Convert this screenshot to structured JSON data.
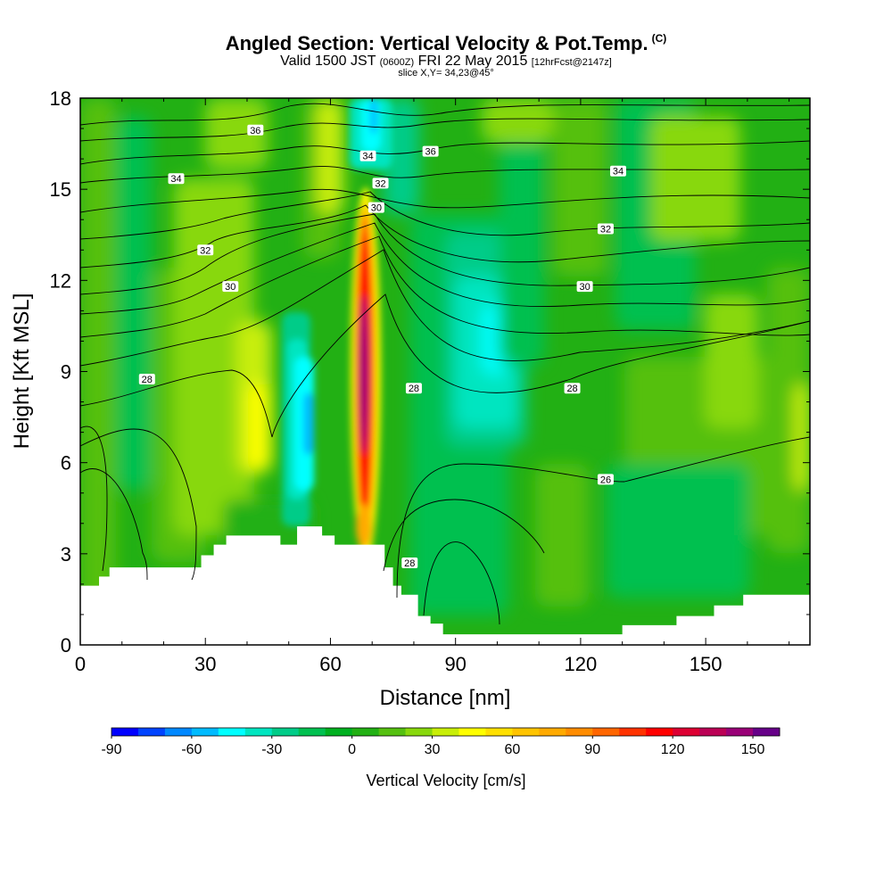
{
  "header": {
    "title": "Angled Section: Vertical Velocity & Pot.Temp.",
    "title_mark": "(C)",
    "valid_prefix": "Valid 1500 JST",
    "valid_utc": "(0600Z)",
    "valid_date": "FRI 22 May 2015",
    "forecast": "[12hrFcst@2147z]",
    "slice": "slice X,Y= 34,23@45°"
  },
  "chart_data": {
    "type": "heatmap",
    "title": "Angled Section: Vertical Velocity & Pot.Temp.",
    "xlabel": "Distance [nm]",
    "ylabel": "Height [Kft MSL]",
    "xlim": [
      0,
      175
    ],
    "ylim": [
      0,
      18
    ],
    "x_ticks": [
      0,
      30,
      60,
      90,
      120,
      150
    ],
    "y_ticks": [
      0,
      3,
      6,
      9,
      12,
      15,
      18
    ],
    "colorbar": {
      "label": "Vertical Velocity [cm/s]",
      "min": -90,
      "max": 160,
      "step": 10,
      "tick_values": [
        -90,
        -60,
        -30,
        0,
        30,
        60,
        90,
        120,
        150
      ],
      "colors": [
        "#0000ff",
        "#0044ff",
        "#0088ff",
        "#00bbff",
        "#00ffff",
        "#00e5c0",
        "#00cc88",
        "#00c050",
        "#00b020",
        "#22b014",
        "#55c010",
        "#88d80c",
        "#c8ee08",
        "#ffff00",
        "#ffe000",
        "#ffc400",
        "#ffaa00",
        "#ff8c00",
        "#ff6600",
        "#ff3300",
        "#ff0000",
        "#dd0033",
        "#bb0055",
        "#990077",
        "#660088"
      ]
    },
    "contour_labels": [
      {
        "text": "36",
        "x": 42,
        "y": 16.95
      },
      {
        "text": "36",
        "x": 84,
        "y": 16.25
      },
      {
        "text": "34",
        "x": 23,
        "y": 15.35
      },
      {
        "text": "34",
        "x": 69,
        "y": 16.1
      },
      {
        "text": "34",
        "x": 129,
        "y": 15.6
      },
      {
        "text": "32",
        "x": 72,
        "y": 15.2
      },
      {
        "text": "32",
        "x": 30,
        "y": 13.0
      },
      {
        "text": "32",
        "x": 126,
        "y": 13.7
      },
      {
        "text": "30",
        "x": 71,
        "y": 14.4
      },
      {
        "text": "30",
        "x": 36,
        "y": 11.8
      },
      {
        "text": "30",
        "x": 121,
        "y": 11.8
      },
      {
        "text": "28",
        "x": 16,
        "y": 8.75
      },
      {
        "text": "28",
        "x": 80,
        "y": 8.45
      },
      {
        "text": "28",
        "x": 118,
        "y": 8.45
      },
      {
        "text": "26",
        "x": 126,
        "y": 5.45
      },
      {
        "text": "28",
        "x": 79,
        "y": 2.7
      }
    ]
  }
}
